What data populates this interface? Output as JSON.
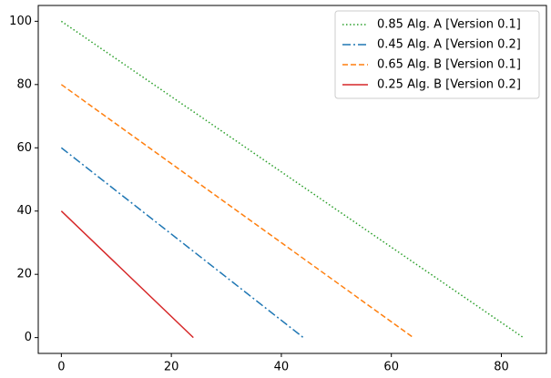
{
  "chart_data": {
    "type": "line",
    "series": [
      {
        "name": "0.85 Alg. A [Version 0.1]",
        "color": "#2ca02c",
        "linestyle": "dotted",
        "x": [
          0,
          84
        ],
        "values": [
          100,
          0
        ]
      },
      {
        "name": "0.45 Alg. A [Version 0.2]",
        "color": "#1f77b4",
        "linestyle": "dashdot",
        "x": [
          0,
          44
        ],
        "values": [
          60,
          0
        ]
      },
      {
        "name": "0.65 Alg. B [Version 0.1]",
        "color": "#ff7f0e",
        "linestyle": "dashed",
        "x": [
          0,
          64
        ],
        "values": [
          80,
          0
        ]
      },
      {
        "name": "0.25 Alg. B [Version 0.2]",
        "color": "#d62728",
        "linestyle": "solid",
        "x": [
          0,
          24
        ],
        "values": [
          40,
          0
        ]
      }
    ],
    "xlim": [
      -4.2,
      88.2
    ],
    "xticks": [
      0,
      20,
      40,
      60,
      80
    ],
    "ylim": [
      -5,
      105
    ],
    "yticks": [
      0,
      20,
      40,
      60,
      80,
      100
    ],
    "grid": false,
    "legend": "upper right"
  }
}
